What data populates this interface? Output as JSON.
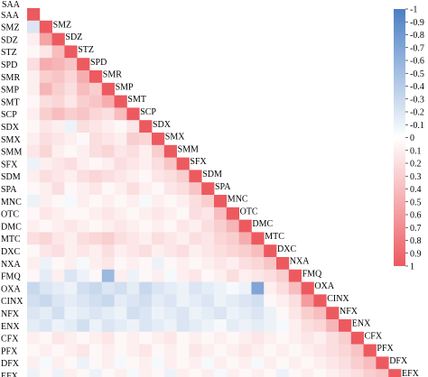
{
  "chart_data": {
    "type": "heatmap",
    "title": "",
    "xlabel": "",
    "ylabel": "",
    "layout": "lower-triangle",
    "variables": [
      "SAA",
      "SMZ",
      "SDZ",
      "STZ",
      "SPD",
      "SMR",
      "SMP",
      "SMT",
      "SCP",
      "SDX",
      "SMX",
      "SMM",
      "SFX",
      "SDM",
      "SPA",
      "MNC",
      "OTC",
      "DMC",
      "MTC",
      "DXC",
      "NXA",
      "FMQ",
      "OXA",
      "CINX",
      "NFX",
      "ENX",
      "CFX",
      "PFX",
      "DFX",
      "EFX"
    ],
    "value_range": [
      -1,
      1
    ],
    "colorbar": {
      "ticks": [
        -1,
        -0.9,
        -0.8,
        -0.7,
        -0.6,
        -0.5,
        -0.4,
        -0.3,
        -0.2,
        -0.1,
        0,
        0.1,
        0.2,
        0.3,
        0.4,
        0.5,
        0.6,
        0.7,
        0.8,
        0.9,
        1
      ],
      "tick_labels": [
        "-1",
        "-0.9",
        "-0.8",
        "-0.7",
        "-0.6",
        "-0.5",
        "-0.4",
        "-0.3",
        "-0.2",
        "-0.1",
        "0",
        "0.1",
        "0.2",
        "0.3",
        "0.4",
        "0.5",
        "0.6",
        "0.7",
        "0.8",
        "0.9",
        "1"
      ],
      "negative_color": "#4a7fc4",
      "zero_color": "#ffffff",
      "positive_color": "#ec5a5f"
    },
    "lower_triangle": [
      [],
      [
        -0.2
      ],
      [
        0.1,
        0.55
      ],
      [
        0.05,
        0.15,
        0.4
      ],
      [
        0.2,
        0.5,
        0.45,
        0.35
      ],
      [
        0.1,
        0.3,
        0.35,
        0.25,
        0.5
      ],
      [
        0.1,
        0.45,
        0.3,
        0.2,
        0.4,
        0.3
      ],
      [
        0.05,
        0.2,
        0.25,
        0.15,
        0.3,
        0.35,
        0.5
      ],
      [
        0.1,
        0.3,
        0.4,
        0.3,
        0.35,
        0.25,
        0.2,
        0.4
      ],
      [
        0.05,
        0.15,
        0.1,
        -0.1,
        0.2,
        0.15,
        0.1,
        0.05,
        0.15
      ],
      [
        0.1,
        0.2,
        0.15,
        0.1,
        0.05,
        0.2,
        0.15,
        0.1,
        0.3,
        0.25
      ],
      [
        0.15,
        0.25,
        0.1,
        0.05,
        0.1,
        0.2,
        0.25,
        0.15,
        0.2,
        0.1,
        0.3
      ],
      [
        -0.1,
        0.1,
        0.15,
        0.2,
        0.1,
        0.05,
        0.1,
        0.2,
        0.15,
        0.1,
        0.2,
        0.35
      ],
      [
        0.1,
        0.2,
        0.15,
        0.1,
        0.2,
        0.25,
        0.2,
        0.15,
        0.1,
        0.05,
        0.15,
        0.2,
        0.3
      ],
      [
        0.05,
        0.1,
        0.2,
        0.05,
        0.1,
        0.15,
        0.05,
        0.1,
        0.2,
        0.1,
        0.05,
        0.15,
        0.2,
        0.35
      ],
      [
        -0.1,
        0.1,
        0.05,
        -0.05,
        0.1,
        0.05,
        0.1,
        0.05,
        0.1,
        -0.05,
        0.1,
        0.05,
        0.1,
        0.2,
        0.3
      ],
      [
        0.05,
        0.15,
        0.1,
        0.05,
        0.05,
        0.1,
        0.15,
        0.1,
        0.05,
        0.1,
        0.15,
        0.1,
        0.05,
        0.2,
        0.15,
        0.4
      ],
      [
        0.1,
        0.05,
        0.1,
        0.15,
        0.1,
        0.05,
        0.1,
        0.15,
        0.1,
        0.05,
        0.1,
        0.05,
        0.15,
        0.1,
        0.2,
        0.3,
        0.45
      ],
      [
        0.2,
        0.25,
        0.15,
        0.1,
        0.2,
        0.25,
        0.3,
        0.2,
        0.15,
        0.1,
        0.2,
        0.15,
        0.1,
        0.2,
        0.15,
        0.25,
        0.3,
        0.5
      ],
      [
        0.05,
        0.15,
        0.2,
        0.1,
        0.15,
        0.1,
        0.2,
        0.1,
        0.15,
        0.2,
        0.1,
        0.15,
        0.2,
        0.1,
        0.15,
        0.2,
        0.25,
        0.3,
        0.4
      ],
      [
        0.1,
        -0.1,
        0.05,
        0.1,
        -0.05,
        0.1,
        0.15,
        0.05,
        0.1,
        0.05,
        -0.1,
        0.05,
        0.1,
        0.05,
        0.1,
        0.15,
        0.1,
        0.2,
        0.25,
        0.35
      ],
      [
        0.05,
        -0.15,
        0.1,
        -0.2,
        -0.1,
        0.05,
        -0.55,
        0.1,
        -0.1,
        0.05,
        0.1,
        -0.05,
        0.1,
        0.15,
        0.05,
        0.1,
        0.2,
        0.1,
        0.15,
        0.2,
        0.3
      ],
      [
        -0.3,
        -0.2,
        -0.15,
        -0.1,
        -0.25,
        -0.3,
        -0.2,
        -0.25,
        -0.15,
        -0.3,
        -0.2,
        -0.15,
        -0.1,
        -0.2,
        -0.15,
        -0.1,
        -0.05,
        -0.1,
        -0.7,
        0.1,
        0.2,
        0.4
      ],
      [
        -0.25,
        -0.3,
        -0.2,
        -0.15,
        -0.2,
        -0.25,
        -0.3,
        -0.15,
        -0.2,
        -0.25,
        -0.15,
        -0.2,
        -0.1,
        -0.15,
        -0.2,
        -0.1,
        -0.15,
        -0.2,
        -0.25,
        0.05,
        0.1,
        0.2,
        0.6
      ],
      [
        -0.2,
        -0.15,
        -0.25,
        -0.1,
        -0.15,
        -0.2,
        -0.15,
        -0.1,
        -0.25,
        -0.2,
        -0.1,
        -0.15,
        -0.2,
        -0.1,
        -0.15,
        -0.2,
        -0.1,
        -0.15,
        -0.2,
        -0.1,
        0.05,
        0.15,
        0.3,
        0.4
      ],
      [
        -0.15,
        -0.2,
        -0.1,
        -0.15,
        -0.25,
        -0.1,
        -0.2,
        -0.15,
        -0.1,
        -0.2,
        -0.15,
        -0.1,
        -0.2,
        -0.15,
        -0.1,
        -0.05,
        -0.15,
        -0.1,
        -0.15,
        -0.1,
        -0.05,
        0.1,
        0.2,
        0.25,
        0.45
      ],
      [
        0.1,
        0.05,
        0.15,
        0.1,
        0.05,
        0.1,
        0.15,
        0.05,
        0.1,
        0.05,
        0.1,
        0.15,
        0.05,
        0.1,
        0.05,
        0.1,
        0.05,
        0.1,
        0.15,
        0.1,
        0.05,
        0.1,
        0.15,
        0.1,
        0.2,
        0.3
      ],
      [
        0.05,
        0.1,
        0.05,
        0.1,
        0.15,
        0.05,
        0.1,
        0.05,
        0.1,
        0.15,
        0.05,
        0.1,
        0.05,
        0.15,
        0.1,
        0.05,
        0.1,
        0.15,
        0.1,
        0.05,
        0.1,
        0.05,
        0.1,
        0.15,
        0.2,
        0.25,
        0.35
      ],
      [
        0.1,
        -0.05,
        0.1,
        0.05,
        -0.1,
        0.05,
        0.1,
        -0.05,
        0.05,
        0.1,
        -0.05,
        0.1,
        0.05,
        0.1,
        -0.05,
        0.1,
        0.05,
        0.1,
        -0.05,
        0.1,
        0.05,
        0.1,
        0.05,
        0.1,
        0.15,
        0.2,
        0.3,
        0.4
      ],
      [
        -0.1,
        0.05,
        -0.1,
        0.1,
        0.05,
        -0.1,
        0.05,
        0.1,
        -0.05,
        0.1,
        0.05,
        -0.1,
        0.1,
        0.05,
        0.1,
        -0.05,
        0.1,
        0.05,
        0.1,
        0.05,
        -0.1,
        0.05,
        0.1,
        0.05,
        0.1,
        0.15,
        0.2,
        0.3,
        0.35
      ]
    ]
  }
}
